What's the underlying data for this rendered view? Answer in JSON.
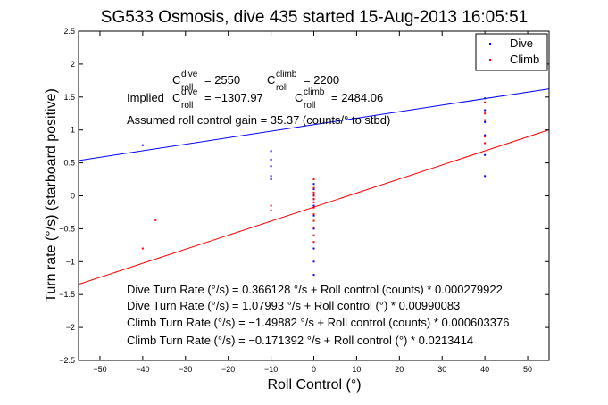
{
  "chart_data": {
    "type": "scatter",
    "title": "SG533 Osmosis, dive 435 started 15-Aug-2013 16:05:51",
    "xlabel": "Roll Control (°)",
    "ylabel": "Turn rate (°/s) (starboard positive)",
    "xlim": [
      -55,
      55
    ],
    "ylim": [
      -2.5,
      2.5
    ],
    "xticks": [
      "−50",
      "−40",
      "−30",
      "−20",
      "−10",
      "0",
      "10",
      "20",
      "30",
      "40",
      "50"
    ],
    "yticks": [
      "2.5",
      "2",
      "1.5",
      "1",
      "0.5",
      "0",
      "−0.5",
      "−1",
      "−1.5",
      "−2",
      "−2.5"
    ],
    "grid": false,
    "legend": {
      "placement": "top-right",
      "entries": [
        {
          "label": "Dive",
          "color": "#0000ff"
        },
        {
          "label": "Climb",
          "color": "#ff0000"
        }
      ]
    },
    "series": [
      {
        "name": "Dive",
        "color": "#0000ff",
        "points": [
          [
            -40,
            0.77
          ],
          [
            -10,
            0.68
          ],
          [
            -10,
            0.55
          ],
          [
            -10,
            0.45
          ],
          [
            -10,
            0.3
          ],
          [
            -10,
            0.25
          ],
          [
            0,
            0.18
          ],
          [
            0,
            0.1
          ],
          [
            0,
            0.02
          ],
          [
            0,
            -0.05
          ],
          [
            0,
            -0.15
          ],
          [
            0,
            -0.3
          ],
          [
            0,
            -0.5
          ],
          [
            0,
            -0.8
          ],
          [
            0,
            -1.0
          ],
          [
            0,
            -1.2
          ],
          [
            40,
            1.48
          ],
          [
            40,
            1.3
          ],
          [
            40,
            1.12
          ],
          [
            40,
            0.92
          ],
          [
            40,
            0.62
          ],
          [
            40,
            0.3
          ]
        ],
        "fit": {
          "intercept": 1.07993,
          "slope": 0.00990083
        }
      },
      {
        "name": "Climb",
        "color": "#ff0000",
        "points": [
          [
            -40,
            -0.8
          ],
          [
            -37,
            -0.37
          ],
          [
            -10,
            -0.15
          ],
          [
            -10,
            -0.22
          ],
          [
            0,
            0.25
          ],
          [
            0,
            0.12
          ],
          [
            0,
            0.05
          ],
          [
            0,
            0.0
          ],
          [
            0,
            -0.05
          ],
          [
            0,
            -0.1
          ],
          [
            0,
            -0.18
          ],
          [
            0,
            -0.28
          ],
          [
            0,
            -0.38
          ],
          [
            0,
            -0.48
          ],
          [
            0,
            -0.6
          ],
          [
            0,
            -0.7
          ],
          [
            40,
            1.42
          ],
          [
            40,
            1.25
          ],
          [
            40,
            1.15
          ],
          [
            40,
            0.9
          ],
          [
            40,
            0.8
          ]
        ],
        "fit": {
          "intercept": -0.171392,
          "slope": 0.0213414
        }
      }
    ],
    "annotations": {
      "c_roll_dive": {
        "base": "C",
        "sup": "dive",
        "sub": "roll",
        "value": "= 2550"
      },
      "c_roll_climb": {
        "base": "C",
        "sup": "climb",
        "sub": "roll",
        "value": "= 2200"
      },
      "implied_label": "Implied",
      "implied_dive": {
        "base": "C",
        "sup": "dive",
        "sub": "roll",
        "value": "= −1307.97"
      },
      "implied_climb": {
        "base": "C",
        "sup": "climb",
        "sub": "roll",
        "value": "= 2484.06"
      },
      "assumed_gain": "Assumed roll control gain = 35.37 (counts/° to stbd)",
      "equations": [
        "Dive Turn Rate (°/s) = 0.366128 °/s + Roll control (counts) * 0.000279922",
        "Dive Turn Rate (°/s) = 1.07993 °/s + Roll control (°) * 0.00990083",
        "Climb Turn Rate (°/s) = −1.49882 °/s + Roll control (counts) * 0.000603376",
        "Climb Turn Rate (°/s) = −0.171392 °/s + Roll control (°) * 0.0213414"
      ]
    }
  }
}
